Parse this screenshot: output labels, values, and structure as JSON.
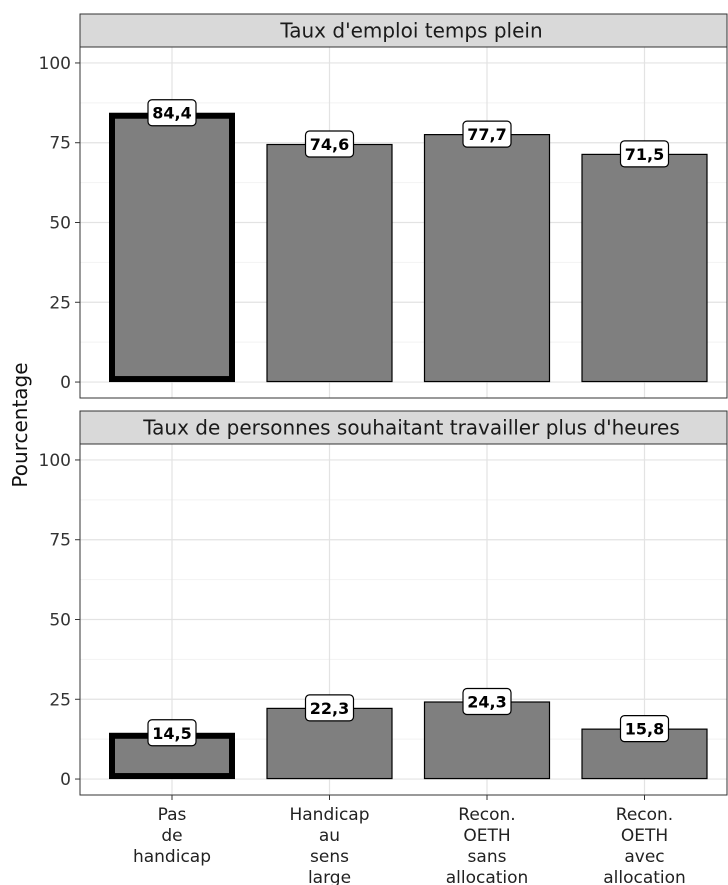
{
  "chart_data": {
    "type": "bar",
    "ylabel": "Pourcentage",
    "ylim": [
      0,
      100
    ],
    "yticks": [
      "0",
      "25",
      "50",
      "75",
      "100"
    ],
    "grid": true,
    "categories": [
      [
        "Pas",
        "de",
        "handicap"
      ],
      [
        "Handicap",
        "au",
        "sens",
        "large"
      ],
      [
        "Recon.",
        "OETH",
        "sans",
        "allocation"
      ],
      [
        "Recon.",
        "OETH",
        "avec",
        "allocation"
      ]
    ],
    "highlighted_category_index": 0,
    "bar_color": "#7f7f7f",
    "panels": [
      {
        "title": "Taux d'emploi temps plein",
        "values": [
          84.4,
          74.6,
          77.7,
          71.5
        ],
        "value_labels": [
          "84,4",
          "74,6",
          "77,7",
          "71,5"
        ]
      },
      {
        "title": "Taux de personnes souhaitant travailler plus d'heures",
        "values": [
          14.5,
          22.3,
          24.3,
          15.8
        ],
        "value_labels": [
          "14,5",
          "22,3",
          "24,3",
          "15,8"
        ]
      }
    ]
  }
}
